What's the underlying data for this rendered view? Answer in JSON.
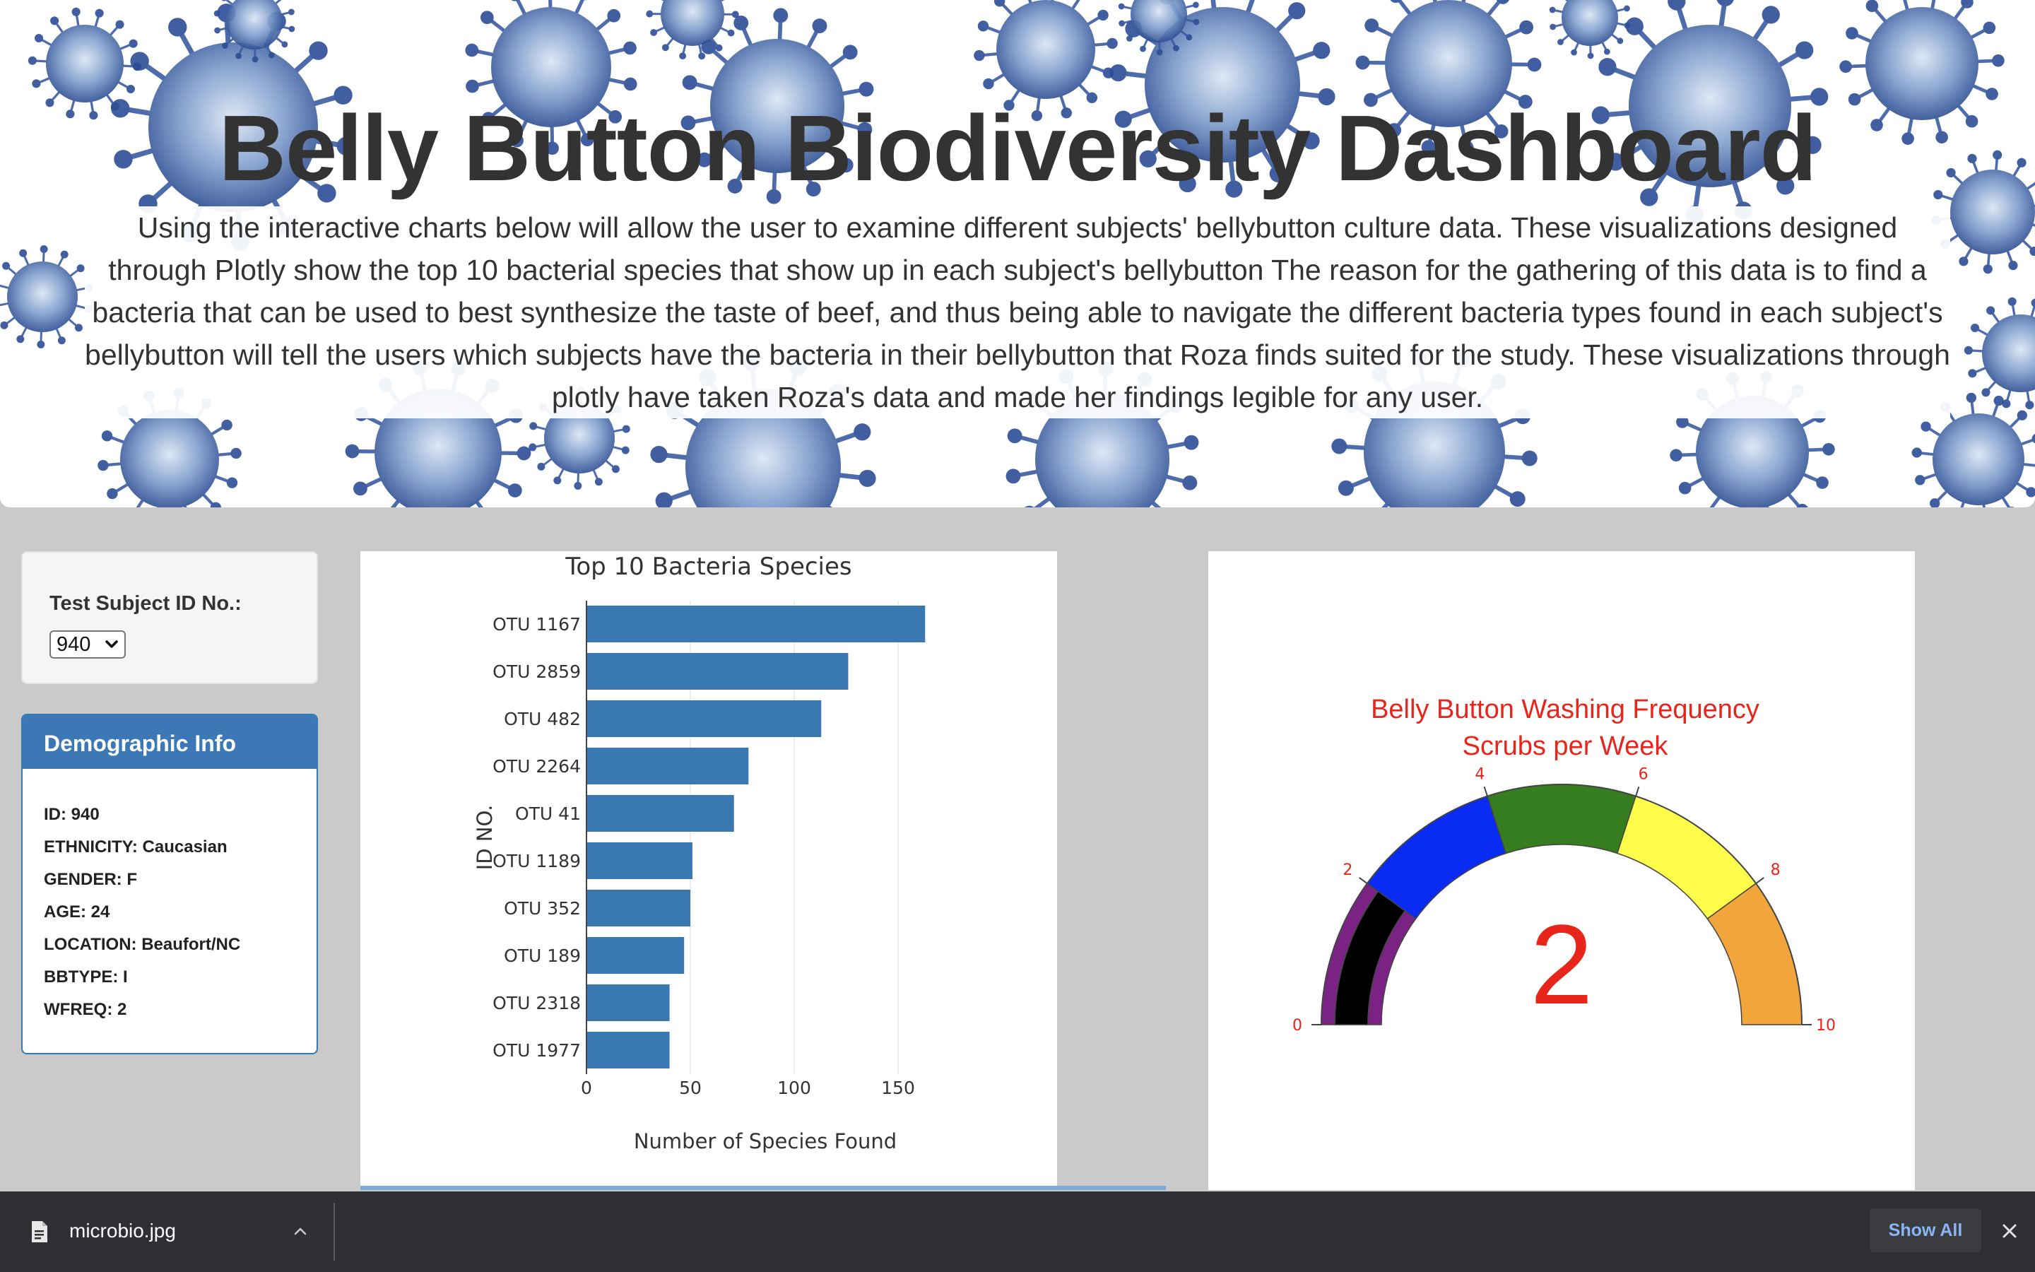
{
  "header": {
    "title": "Belly Button Biodiversity Dashboard",
    "description": "Using the interactive charts below will allow the user to examine different subjects' bellybutton culture data. These visualizations designed through Plotly show the top 10 bacterial species that show up in each subject's bellybutton The reason for the gathering of this data is to find a bacteria that can be used to best synthesize the taste of beef, and thus being able to navigate the different bacteria types found in each subject's bellybutton will tell the users which subjects have the bacteria in their bellybutton that Roza finds suited for the study. These visualizations through plotly have taken Roza's data and made her findings legible for any user.",
    "background_icon": "virus-icon"
  },
  "selector": {
    "label": "Test Subject ID No.:",
    "selected_value": "940"
  },
  "demographics": {
    "heading": "Demographic Info",
    "lines": [
      "ID: 940",
      "ETHNICITY: Caucasian",
      "GENDER: F",
      "AGE: 24",
      "LOCATION: Beaufort/NC",
      "BBTYPE: I",
      "WFREQ: 2"
    ]
  },
  "chart_data": [
    {
      "type": "bar",
      "orientation": "horizontal",
      "title": "Top 10 Bacteria Species",
      "xlabel": "Number of Species Found",
      "ylabel": "ID NO.",
      "categories": [
        "OTU 1167",
        "OTU 2859",
        "OTU 482",
        "OTU 2264",
        "OTU 41",
        "OTU 1189",
        "OTU 352",
        "OTU 189",
        "OTU 2318",
        "OTU 1977"
      ],
      "values": [
        163,
        126,
        113,
        78,
        71,
        51,
        50,
        47,
        40,
        40
      ],
      "xlim": [
        0,
        175
      ],
      "xticks": [
        0,
        50,
        100,
        150
      ],
      "grid": true,
      "color": "#3a78b2"
    },
    {
      "type": "gauge",
      "title": "Belly Button Washing Frequency",
      "subtitle": "Scrubs per Week",
      "value": 2,
      "range": [
        0,
        10
      ],
      "ticks": [
        0,
        2,
        4,
        6,
        8,
        10
      ],
      "bands": [
        {
          "from": 0,
          "to": 2,
          "color": "#7b2285"
        },
        {
          "from": 2,
          "to": 4,
          "color": "#0a2cf2"
        },
        {
          "from": 4,
          "to": 6,
          "color": "#367d20"
        },
        {
          "from": 6,
          "to": 8,
          "color": "#fdfd4a"
        },
        {
          "from": 8,
          "to": 10,
          "color": "#f2a53a"
        }
      ],
      "bar_color": "#000000",
      "text_color": "#e8251b"
    }
  ],
  "download_bar": {
    "file_name": "microbio.jpg",
    "file_icon": "file-icon",
    "show_all_label": "Show All"
  }
}
